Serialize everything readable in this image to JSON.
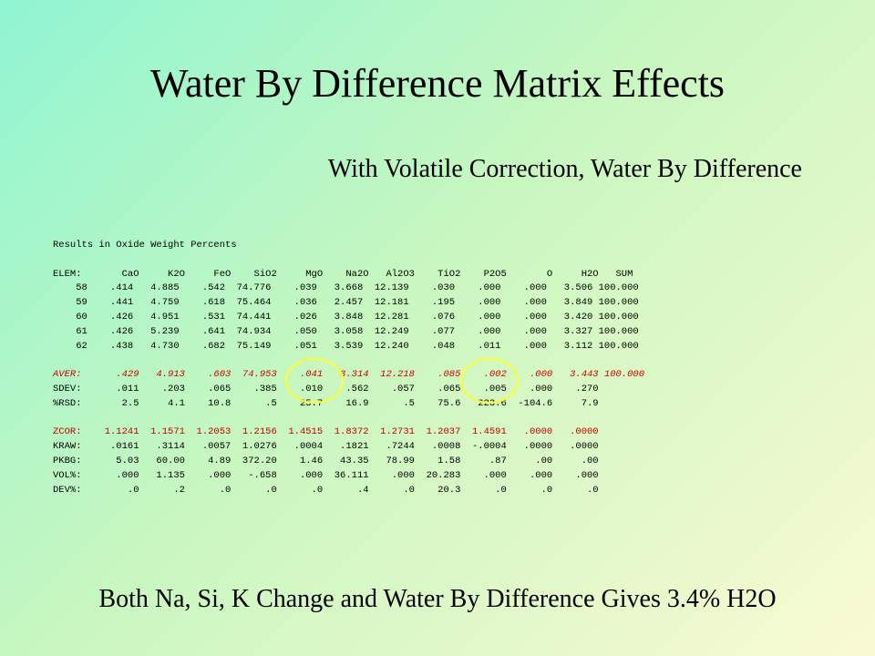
{
  "title": "Water By Difference Matrix Effects",
  "subtitle": "With Volatile Correction, Water By Difference",
  "footer": "Both Na, Si, K Change and Water By Difference Gives  3.4% H2O",
  "report": {
    "heading": "Results in Oxide Weight Percents",
    "header": "ELEM:       CaO     K2O     FeO    SiO2     MgO    Na2O   Al2O3    TiO2    P2O5       O     H2O   SUM",
    "rows": [
      "    58    .414   4.885    .542  74.776    .039   3.668  12.139    .030    .000    .000   3.506 100.000",
      "    59    .441   4.759    .618  75.464    .036   2.457  12.181    .195    .000    .000   3.849 100.000",
      "    60    .426   4.951    .531  74.441    .026   3.848  12.281    .076    .000    .000   3.420 100.000",
      "    61    .426   5.239    .641  74.934    .050   3.058  12.249    .077    .000    .000   3.327 100.000",
      "    62    .438   4.730    .682  75.149    .051   3.539  12.240    .048    .011    .000   3.112 100.000"
    ],
    "aver": "AVER:      .429   4.913    .603  74.953    .041   3.314  12.218    .085    .002    .000   3.443 100.000",
    "sdev": "SDEV:      .011    .203    .065    .385    .010    .562    .057    .065    .005    .000    .270",
    "rsd": "%RSD:       2.5     4.1    10.8      .5    25.7    16.9      .5    75.6   223.6  -104.6     7.9",
    "zcor": "ZCOR:    1.1241  1.1571  1.2053  1.2156  1.4515  1.8372  1.2731  1.2037  1.4591   .0000   .0000",
    "kraw": "KRAW:     .0161   .3114   .0057  1.0276   .0004   .1821   .7244   .0008  -.0004   .0000   .0000",
    "pkbg": "PKBG:      5.03   60.00    4.89  372.20    1.46   43.35   78.99    1.58     .87     .00     .00",
    "volp": "VOL%:      .000   1.135    .000   -.658    .000  36.111    .000  20.283    .000    .000    .000",
    "devp": "DEV%:        .0      .2      .0      .0      .0      .4      .0    20.3      .0      .0      .0"
  },
  "colors": {
    "highlight_red": "#d00000",
    "circle_yellow": "#ffff33"
  }
}
